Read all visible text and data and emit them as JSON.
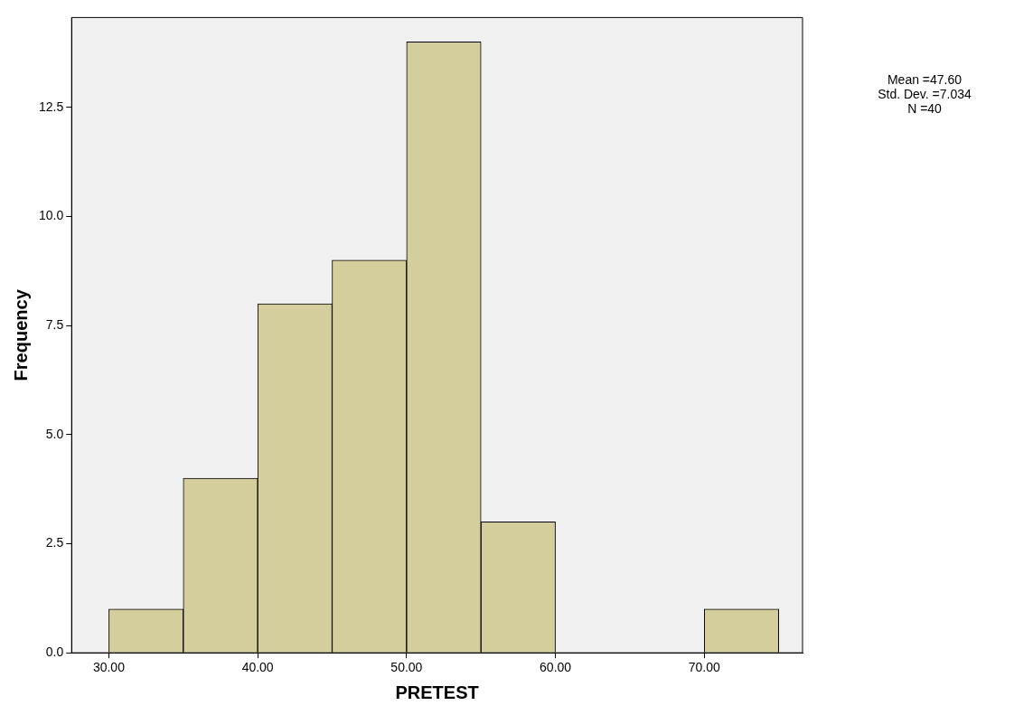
{
  "chart_data": {
    "type": "histogram",
    "xlabel": "PRETEST",
    "ylabel": "Frequency",
    "bins": [
      30,
      35,
      40,
      45,
      50,
      55,
      60,
      65,
      70,
      75
    ],
    "values": [
      1,
      4,
      8,
      9,
      14,
      3,
      0,
      0,
      1
    ],
    "color": "#d3ce9c",
    "xlim": [
      27.5,
      76.6
    ],
    "ylim": [
      0,
      14.56
    ],
    "xticks": [
      {
        "value": 30,
        "label": "30.00"
      },
      {
        "value": 40,
        "label": "40.00"
      },
      {
        "value": 50,
        "label": "50.00"
      },
      {
        "value": 60,
        "label": "60.00"
      },
      {
        "value": 70,
        "label": "70.00"
      }
    ],
    "yticks": [
      {
        "value": 0,
        "label": "0.0"
      },
      {
        "value": 2.5,
        "label": "2.5"
      },
      {
        "value": 5,
        "label": "5.0"
      },
      {
        "value": 7.5,
        "label": "7.5"
      },
      {
        "value": 10,
        "label": "10.0"
      },
      {
        "value": 12.5,
        "label": "12.5"
      }
    ],
    "grid": false,
    "legend": false,
    "annotations": [
      "Mean =47.60",
      "Std. Dev. =7.034",
      "N =40"
    ]
  }
}
